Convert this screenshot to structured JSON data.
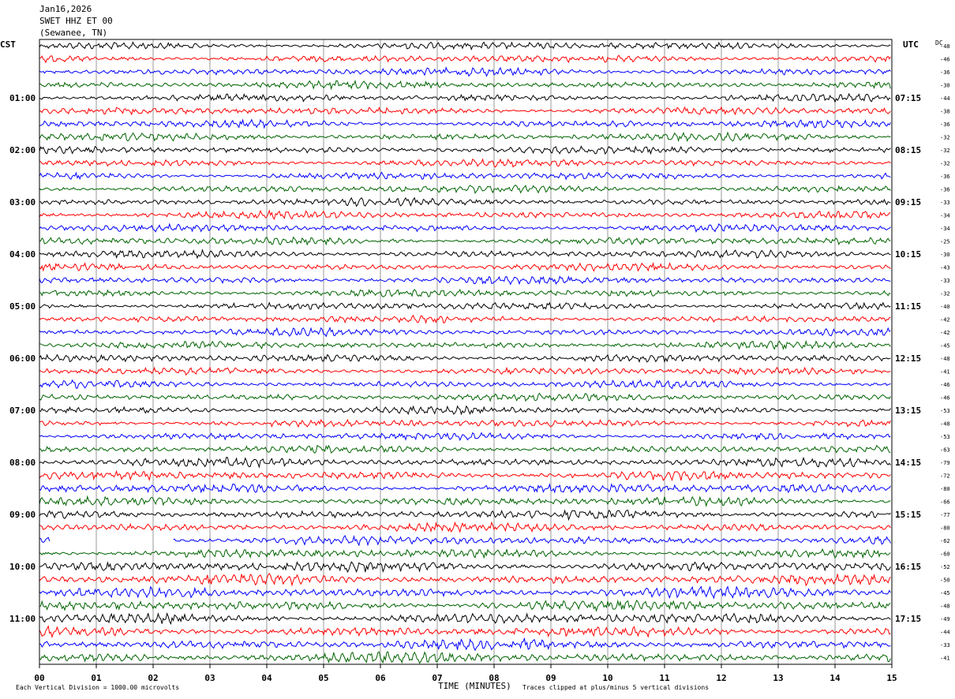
{
  "header": {
    "date": "Jan16,2026",
    "station": "SWET HHZ ET 00",
    "location": "(Sewanee, TN)"
  },
  "left_zone": "CST",
  "right_zone": "UTC",
  "dc_label": "DC",
  "footer": {
    "scale_note": "Each Vertical Division = 1000.00 microvolts",
    "x_title": "TIME (MINUTES)",
    "clip_note": "Traces clipped at plus/minus 5 vertical divisions"
  },
  "colors": {
    "trace_cycle": [
      "#000000",
      "#ff0000",
      "#0000ff",
      "#006400"
    ],
    "grid": "#808080"
  },
  "chart_data": {
    "type": "line",
    "xlabel": "TIME (MINUTES)",
    "xlim": [
      0,
      15
    ],
    "x_ticks": [
      "00",
      "01",
      "02",
      "03",
      "04",
      "05",
      "06",
      "07",
      "08",
      "09",
      "10",
      "11",
      "12",
      "13",
      "14",
      "15"
    ],
    "rows_per_hour": 4,
    "row_count": 48,
    "left_hour_labels": [
      "01:00",
      "02:00",
      "03:00",
      "04:00",
      "05:00",
      "06:00",
      "07:00",
      "08:00",
      "09:00",
      "10:00",
      "11:00"
    ],
    "right_hour_labels": [
      "07:15",
      "08:15",
      "09:15",
      "10:15",
      "11:15",
      "12:15",
      "13:15",
      "14:15",
      "15:15",
      "16:15",
      "17:15"
    ],
    "dc_offsets": [
      -48,
      -46,
      -36,
      -30,
      -44,
      -38,
      -36,
      -32,
      -32,
      -32,
      -36,
      -36,
      -33,
      -34,
      -34,
      -25,
      -30,
      -43,
      -33,
      -32,
      -40,
      -42,
      -42,
      -45,
      -48,
      -41,
      -46,
      -46,
      -53,
      -48,
      -53,
      -63,
      -79,
      -72,
      -80,
      -66,
      -77,
      -80,
      -62,
      -60,
      -52,
      -50,
      -45,
      -48,
      -49,
      -44,
      -33,
      -41
    ],
    "gaps": [
      {
        "row": 38,
        "from_minute": 0.2,
        "to_minute": 2.35
      }
    ]
  }
}
